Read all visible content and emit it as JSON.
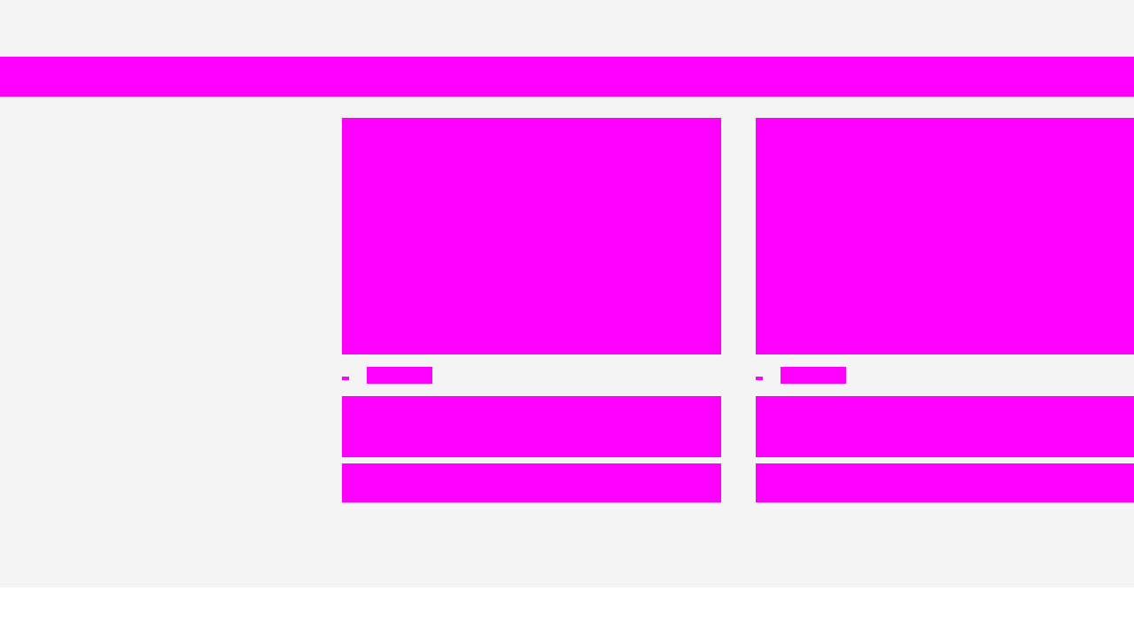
{
  "colors": {
    "background": "#f4f4f4",
    "page": "#ffffff",
    "placeholder": "#ff00ff"
  },
  "cards": [
    {
      "id": "card-1"
    },
    {
      "id": "card-2"
    }
  ]
}
